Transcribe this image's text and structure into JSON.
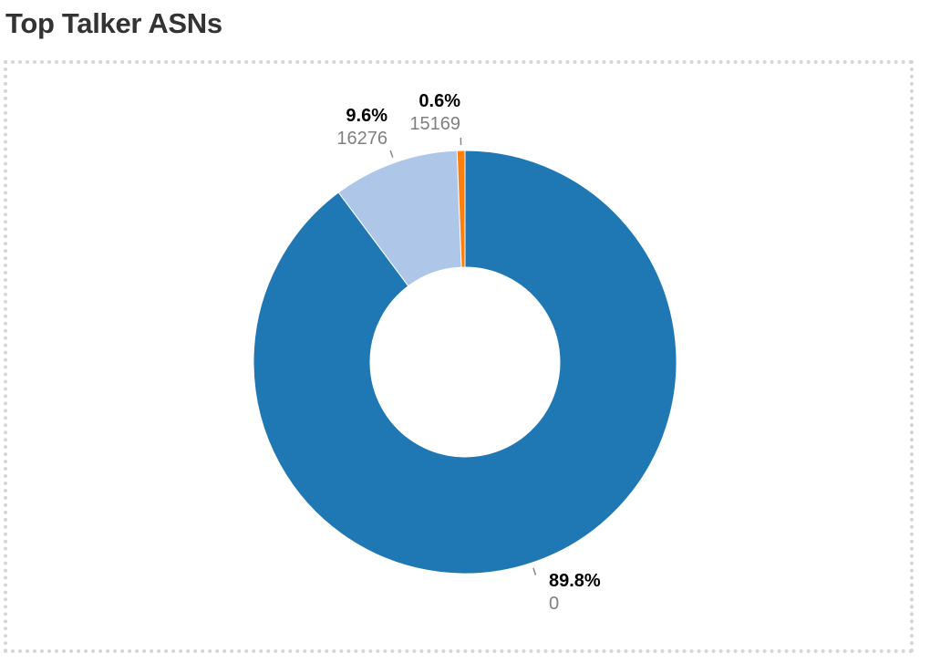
{
  "title": "Top Talker ASNs",
  "chart_data": {
    "type": "pie",
    "donut": true,
    "slices": [
      {
        "name": "0",
        "percent": "89.8%",
        "value": 89.8,
        "color": "#1f77b4"
      },
      {
        "name": "16276",
        "percent": "9.6%",
        "value": 9.6,
        "color": "#aec7e8"
      },
      {
        "name": "15169",
        "percent": "0.6%",
        "value": 0.6,
        "color": "#ff7f0e"
      }
    ]
  }
}
